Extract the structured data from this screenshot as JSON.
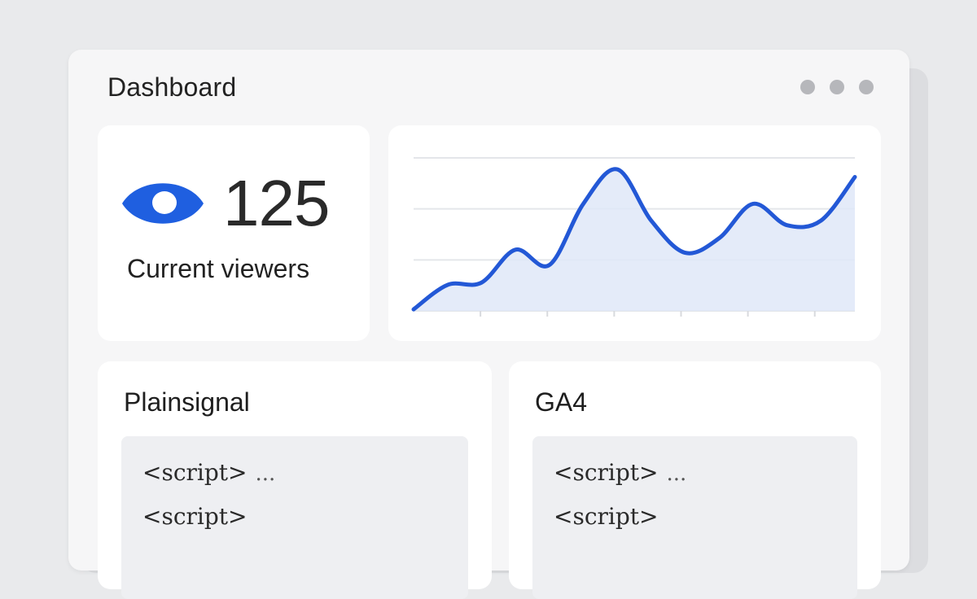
{
  "header": {
    "title": "Dashboard"
  },
  "viewers": {
    "count": "125",
    "label": "Current viewers",
    "icon": "eye-icon",
    "icon_color": "#1f5fe0"
  },
  "chart_data": {
    "type": "area",
    "title": "",
    "xlabel": "",
    "ylabel": "",
    "x": [
      0,
      1,
      2,
      3,
      4,
      5,
      6,
      7,
      8,
      9,
      10,
      11,
      12,
      13
    ],
    "values": [
      2,
      34,
      37,
      80,
      60,
      140,
      185,
      118,
      76,
      95,
      140,
      112,
      118,
      175
    ],
    "ylim": [
      0,
      200
    ],
    "grid": true,
    "line_color": "#2358d6",
    "fill_color": "#dfe7f8"
  },
  "panels": [
    {
      "title": "Plainsignal",
      "code_lines": [
        "<script>",
        "<script>"
      ],
      "ellipsis": "..."
    },
    {
      "title": "GA4",
      "code_lines": [
        "<script>",
        "<script>"
      ],
      "ellipsis": "..."
    }
  ]
}
